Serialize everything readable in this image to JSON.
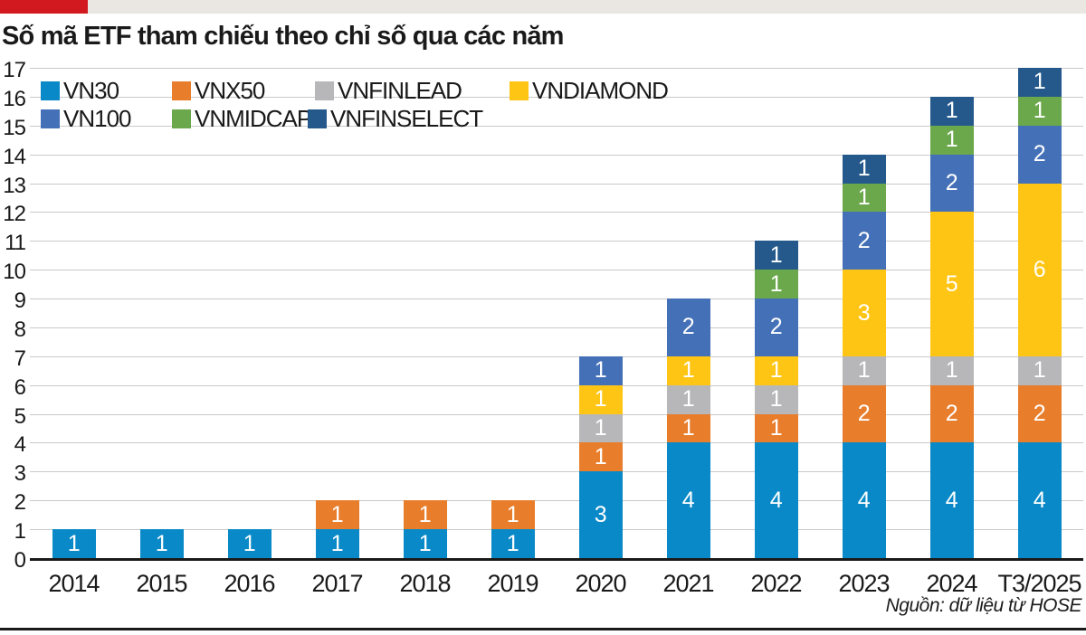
{
  "header": {
    "title": "Số mã ETF tham chiếu theo chỉ số qua các năm"
  },
  "footer": {
    "source": "Nguồn: dữ liệu từ HOSE"
  },
  "colors": {
    "accent_red": "#D31920",
    "top_strip_gray": "#EAE6E1",
    "axis_text": "#1A1A1A",
    "gridline": "#C9C9C9",
    "bar_value_text": "#FFFFFF"
  },
  "chart_data": {
    "type": "bar",
    "stacked": true,
    "title": "Số mã ETF tham chiếu theo chỉ số qua các năm",
    "xlabel": "",
    "ylabel": "",
    "ylim": [
      0,
      17
    ],
    "yticks": [
      0,
      1,
      2,
      3,
      4,
      5,
      6,
      7,
      8,
      9,
      10,
      11,
      12,
      13,
      14,
      15,
      16,
      17
    ],
    "grid": true,
    "legend_position": "top-left",
    "categories": [
      "2014",
      "2015",
      "2016",
      "2017",
      "2018",
      "2019",
      "2020",
      "2021",
      "2022",
      "2023",
      "2024",
      "T3/2025"
    ],
    "series": [
      {
        "name": "VN30",
        "color": "#0989C7",
        "values": [
          1,
          1,
          1,
          1,
          1,
          1,
          3,
          4,
          4,
          4,
          4,
          4
        ]
      },
      {
        "name": "VNX50",
        "color": "#E87D2C",
        "values": [
          0,
          0,
          0,
          1,
          1,
          1,
          1,
          1,
          1,
          2,
          2,
          2
        ]
      },
      {
        "name": "VNFINLEAD",
        "color": "#B7B7B9",
        "values": [
          0,
          0,
          0,
          0,
          0,
          0,
          1,
          1,
          1,
          1,
          1,
          1
        ]
      },
      {
        "name": "VNDIAMOND",
        "color": "#FFC515",
        "values": [
          0,
          0,
          0,
          0,
          0,
          0,
          1,
          1,
          1,
          3,
          5,
          6
        ]
      },
      {
        "name": "VN100",
        "color": "#4470B7",
        "values": [
          0,
          0,
          0,
          0,
          0,
          0,
          1,
          2,
          2,
          2,
          2,
          2
        ]
      },
      {
        "name": "VNMIDCAP",
        "color": "#6BA84B",
        "values": [
          0,
          0,
          0,
          0,
          0,
          0,
          0,
          0,
          1,
          1,
          1,
          1
        ]
      },
      {
        "name": "VNFINSELECT",
        "color": "#25598C",
        "values": [
          0,
          0,
          0,
          0,
          0,
          0,
          0,
          0,
          1,
          1,
          1,
          1
        ]
      }
    ],
    "legend_rows": [
      [
        "VN30",
        "VNX50",
        "VNFINLEAD",
        "VNDIAMOND"
      ],
      [
        "VN100",
        "VNMIDCAP",
        "VNFINSELECT"
      ]
    ]
  }
}
